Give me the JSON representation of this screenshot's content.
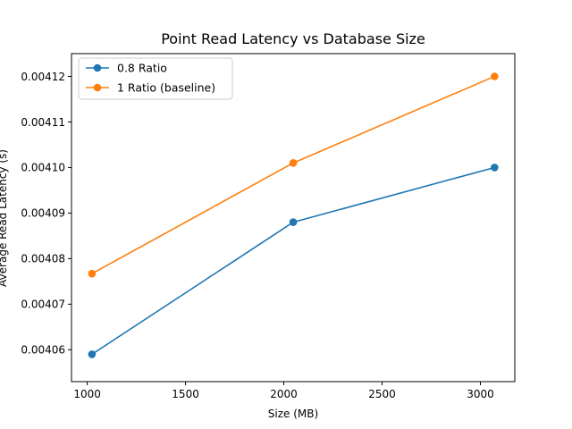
{
  "chart_data": {
    "type": "line",
    "title": "Point Read Latency vs Database Size",
    "xlabel": "Size (MB)",
    "ylabel": "Average Read Latency (s)",
    "xlim": [
      920,
      3175
    ],
    "ylim": [
      0.004053,
      0.004125
    ],
    "x_ticks": [
      1000,
      1500,
      2000,
      2500,
      3000
    ],
    "x_tick_labels": [
      "1000",
      "1500",
      "2000",
      "2500",
      "3000"
    ],
    "y_ticks": [
      0.00406,
      0.00407,
      0.00408,
      0.00409,
      0.0041,
      0.00411,
      0.00412
    ],
    "y_tick_labels": [
      "0.00406",
      "0.00407",
      "0.00408",
      "0.00409",
      "0.00410",
      "0.00411",
      "0.00412"
    ],
    "grid": false,
    "legend_position": "upper-left",
    "series": [
      {
        "name": "0.8 Ratio",
        "color": "#1f77b4",
        "marker": "circle",
        "x": [
          1024,
          2048,
          3072
        ],
        "y": [
          0.004059,
          0.004088,
          0.0041
        ]
      },
      {
        "name": "1 Ratio (baseline)",
        "color": "#ff7f0e",
        "marker": "circle",
        "x": [
          1024,
          2048,
          3072
        ],
        "y": [
          0.0040767,
          0.004101,
          0.00412
        ]
      }
    ]
  }
}
